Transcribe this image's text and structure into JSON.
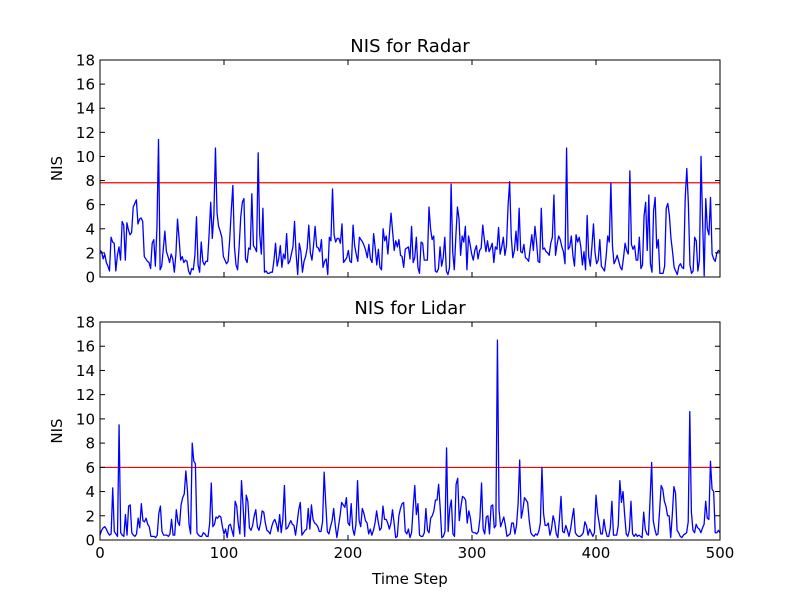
{
  "chart_data": [
    {
      "type": "line",
      "title": "NIS for Radar",
      "xlabel": "",
      "ylabel": "NIS",
      "xlim": [
        0,
        500
      ],
      "ylim": [
        0,
        18
      ],
      "x_ticks": [
        "0",
        "100",
        "200",
        "300",
        "400",
        "500"
      ],
      "y_ticks": [
        "0",
        "2",
        "4",
        "6",
        "8",
        "10",
        "12",
        "14",
        "16",
        "18"
      ],
      "threshold": 7.815,
      "series": [
        {
          "color": "#0000ff",
          "values": [
            2.2,
            2.1,
            1.5,
            1.9,
            1.2,
            0.9,
            0.5,
            3.3,
            2.9,
            2.8,
            0.5,
            1.8,
            2.5,
            1.4,
            4.6,
            4.3,
            1.4,
            4.5,
            3.9,
            3.5,
            3.7,
            5.8,
            6.1,
            6.4,
            4.4,
            4.8,
            4.9,
            4.6,
            1.7,
            1.5,
            1.3,
            1.2,
            0.7,
            2.8,
            3.1,
            0.9,
            4.1,
            11.4,
            0.6,
            0.9,
            2.3,
            3.8,
            2.1,
            1.7,
            1.2,
            1.9,
            1.5,
            0.4,
            1.9,
            4.8,
            3.2,
            1.4,
            1.7,
            1.2,
            1.4,
            1.3,
            0.5,
            0.2,
            0.7,
            0.6,
            1.8,
            5.0,
            1.0,
            0.4,
            2.9,
            1.3,
            1.0,
            1.3,
            1.3,
            3.6,
            6.2,
            3.2,
            5.2,
            10.7,
            5.3,
            4.2,
            3.8,
            3.3,
            1.7,
            1.4,
            1.1,
            1.3,
            3.1,
            5.5,
            7.6,
            2.5,
            1.0,
            0.6,
            2.6,
            5.0,
            6.2,
            6.5,
            1.5,
            1.2,
            2.4,
            2.3,
            6.9,
            2.6,
            2.4,
            2.1,
            10.3,
            3.5,
            1.9,
            5.7,
            0.4,
            0.5,
            0.3,
            0.3,
            0.4,
            0.4,
            1.4,
            2.8,
            0.9,
            1.5,
            2.6,
            0.8,
            1.9,
            1.5,
            3.6,
            1.1,
            1.3,
            1.9,
            2.5,
            4.6,
            1.9,
            0.2,
            2.8,
            2.1,
            0.4,
            1.3,
            1.7,
            2.4,
            4.3,
            2.0,
            1.4,
            2.6,
            4.2,
            2.5,
            2.4,
            2.1,
            3.1,
            0.8,
            1.3,
            1.5,
            0.2,
            3.3,
            3.0,
            7.3,
            3.5,
            2.9,
            3.2,
            3.2,
            2.8,
            4.4,
            1.2,
            1.4,
            1.6,
            2.2,
            1.3,
            1.2,
            4.3,
            2.6,
            1.9,
            1.3,
            3.3,
            3.1,
            2.9,
            2.6,
            2.2,
            1.6,
            2.7,
            1.5,
            1.2,
            3.6,
            2.4,
            1.0,
            2.3,
            0.8,
            0.6,
            4.0,
            3.0,
            3.4,
            1.9,
            3.6,
            5.3,
            3.8,
            2.2,
            3.0,
            2.5,
            3.1,
            1.8,
            1.7,
            0.8,
            2.3,
            2.4,
            2.5,
            1.5,
            4.2,
            1.2,
            1.6,
            3.3,
            0.8,
            0.3,
            2.9,
            2.8,
            1.4,
            1.4,
            1.4,
            5.8,
            4.0,
            3.1,
            3.4,
            0.5,
            0.4,
            0.7,
            2.5,
            0.9,
            1.6,
            3.3,
            0.5,
            0.2,
            0.8,
            7.7,
            2.1,
            0.6,
            3.4,
            5.8,
            4.8,
            1.8,
            3.4,
            2.9,
            4.2,
            0.6,
            3.4,
            2.7,
            1.9,
            1.4,
            2.2,
            2.6,
            1.5,
            2.2,
            2.4,
            4.3,
            3.1,
            2.1,
            3.0,
            2.1,
            2.4,
            2.8,
            1.2,
            2.5,
            2.3,
            4.1,
            1.9,
            2.5,
            3.3,
            1.8,
            2.6,
            5.9,
            7.9,
            3.4,
            1.6,
            2.2,
            3.8,
            2.2,
            5.7,
            2.1,
            2.0,
            2.7,
            1.6,
            1.5,
            1.3,
            2.4,
            3.5,
            2.2,
            4.2,
            2.9,
            1.3,
            1.2,
            5.7,
            2.3,
            2.4,
            2.1,
            2.0,
            1.8,
            2.8,
            3.3,
            6.8,
            1.8,
            2.7,
            3.4,
            3.1,
            2.5,
            2.1,
            1.1,
            10.7,
            2.3,
            2.5,
            3.4,
            1.8,
            0.9,
            3.5,
            2.9,
            3.3,
            2.5,
            1.0,
            2.1,
            0.6,
            5.1,
            1.7,
            0.9,
            2.5,
            4.4,
            2.0,
            1.1,
            1.4,
            3.1,
            0.9,
            0.7,
            0.5,
            1.7,
            3.4,
            2.9,
            7.8,
            2.6,
            1.1,
            1.4,
            1.8,
            1.3,
            0.8,
            0.6,
            1.6,
            2.8,
            2.2,
            1.9,
            8.8,
            2.7,
            2.3,
            2.6,
            1.4,
            1.4,
            3.3,
            0.7,
            1.0,
            5.1,
            6.2,
            2.2,
            6.8,
            1.1,
            0.4,
            5.5,
            6.6,
            2.4,
            3.1,
            0.3,
            0.3,
            0.3,
            0.9,
            5.7,
            6.1,
            5.1,
            3.2,
            2.1,
            0.8,
            0.5,
            0.2,
            0.9,
            1.1,
            0.8,
            0.7,
            6.5,
            9.0,
            6.1,
            1.0,
            0.3,
            0.5,
            3.3,
            3.0,
            0.5,
            1.4,
            10.0,
            4.6,
            0.1,
            6.5,
            4.0,
            3.5,
            6.6,
            1.9,
            1.5,
            1.3,
            2.0,
            2.2,
            2.1
          ]
        }
      ]
    },
    {
      "type": "line",
      "title": "NIS for Lidar",
      "xlabel": "Time Step",
      "ylabel": "NIS",
      "xlim": [
        0,
        500
      ],
      "ylim": [
        0,
        18
      ],
      "x_ticks": [
        "0",
        "100",
        "200",
        "300",
        "400",
        "500"
      ],
      "y_ticks": [
        "0",
        "2",
        "4",
        "6",
        "8",
        "10",
        "12",
        "14",
        "16",
        "18"
      ],
      "threshold": 5.991,
      "series": [
        {
          "color": "#0000ff",
          "values": [
            0.4,
            0.8,
            1.0,
            1.1,
            0.9,
            0.6,
            0.4,
            0.5,
            4.3,
            0.7,
            0.5,
            0.3,
            9.5,
            0.6,
            0.4,
            0.3,
            2.1,
            0.4,
            2.8,
            2.9,
            0.6,
            0.4,
            0.3,
            0.5,
            1.8,
            1.0,
            3.0,
            1.6,
            1.5,
            1.8,
            1.3,
            1.1,
            0.3,
            0.3,
            0.3,
            0.2,
            0.4,
            2.2,
            2.8,
            0.7,
            0.4,
            0.4,
            0.4,
            0.3,
            0.5,
            1.7,
            0.4,
            0.4,
            2.5,
            1.5,
            1.2,
            2.9,
            3.5,
            3.8,
            5.7,
            4.1,
            1.3,
            0.5,
            8.0,
            6.5,
            6.3,
            0.6,
            0.4,
            0.3,
            0.3,
            0.6,
            0.5,
            0.3,
            0.3,
            1.4,
            4.7,
            1.1,
            1.3,
            1.9,
            1.8,
            2.0,
            1.9,
            1.1,
            0.5,
            0.9,
            0.2,
            1.2,
            1.3,
            0.8,
            0.3,
            3.2,
            2.8,
            1.3,
            0.5,
            4.9,
            2.8,
            0.3,
            3.7,
            3.2,
            1.0,
            0.8,
            1.2,
            2.0,
            2.5,
            1.1,
            0.8,
            1.4,
            2.4,
            2.3,
            1.4,
            0.8,
            0.7,
            0.5,
            1.1,
            1.5,
            1.7,
            1.3,
            0.7,
            2.1,
            0.6,
            1.7,
            4.5,
            0.9,
            1.0,
            1.3,
            1.6,
            1.3,
            1.2,
            0.4,
            1.4,
            2.5,
            3.1,
            0.4,
            0.6,
            0.8,
            0.9,
            2.6,
            0.9,
            2.9,
            1.7,
            1.4,
            1.3,
            1.1,
            0.7,
            0.7,
            1.5,
            5.6,
            3.0,
            0.7,
            0.5,
            1.1,
            1.6,
            2.6,
            1.2,
            0.2,
            1.1,
            2.0,
            3.1,
            2.9,
            2.7,
            3.5,
            1.4,
            1.2,
            3.0,
            0.9,
            0.4,
            1.3,
            4.9,
            1.6,
            1.1,
            2.6,
            2.2,
            1.6,
            1.4,
            0.5,
            0.9,
            0.4,
            0.8,
            1.4,
            2.4,
            1.5,
            0.8,
            1.0,
            2.8,
            1.7,
            1.7,
            1.4,
            0.9,
            1.4,
            2.5,
            1.4,
            0.2,
            0.3,
            2.0,
            2.6,
            3.0,
            3.1,
            0.7,
            0.5,
            0.9,
            0.2,
            0.6,
            2.7,
            4.5,
            2.1,
            3.0,
            0.4,
            0.3,
            0.3,
            0.6,
            2.6,
            0.8,
            0.6,
            1.8,
            2.0,
            2.4,
            3.3,
            3.3,
            4.6,
            2.6,
            0.2,
            0.3,
            0.7,
            7.6,
            0.7,
            2.6,
            3.3,
            0.5,
            0.3,
            4.6,
            5.1,
            1.6,
            2.7,
            3.6,
            3.5,
            3.3,
            1.4,
            2.4,
            1.8,
            0.7,
            0.6,
            0.6,
            0.5,
            0.7,
            1.8,
            4.7,
            0.9,
            0.5,
            1.9,
            2.0,
            0.5,
            2.8,
            2.9,
            1.0,
            1.2,
            16.5,
            2.5,
            1.1,
            1.5,
            1.9,
            1.2,
            0.3,
            0.4,
            0.5,
            1.4,
            1.4,
            0.5,
            1.2,
            3.0,
            6.6,
            1.8,
            2.5,
            3.5,
            3.3,
            3.1,
            1.6,
            0.6,
            0.4,
            0.3,
            0.5,
            0.4,
            0.7,
            1.4,
            6.0,
            2.2,
            1.2,
            1.2,
            1.4,
            0.4,
            0.9,
            2.0,
            1.5,
            0.5,
            0.2,
            1.7,
            3.6,
            0.7,
            0.6,
            1.2,
            0.8,
            0.3,
            0.9,
            1.8,
            2.6,
            0.6,
            0.4,
            0.3,
            0.3,
            0.4,
            0.6,
            1.5,
            1.2,
            0.4,
            0.9,
            0.6,
            0.3,
            0.6,
            3.7,
            2.2,
            1.4,
            0.5,
            0.5,
            1.7,
            0.8,
            0.3,
            0.3,
            1.0,
            3.2,
            0.4,
            0.4,
            0.4,
            1.2,
            4.9,
            3.1,
            4.0,
            2.1,
            0.5,
            0.3,
            0.8,
            3.2,
            0.5,
            0.3,
            0.5,
            0.3,
            0.4,
            0.3,
            0.2,
            2.3,
            0.9,
            0.5,
            0.4,
            3.3,
            6.4,
            1.6,
            0.9,
            0.4,
            0.5,
            2.4,
            4.5,
            4.2,
            3.2,
            2.8,
            2.0,
            2.0,
            0.2,
            2.1,
            4.4,
            3.9,
            0.8,
            0.6,
            0.3,
            0.2,
            0.4,
            0.5,
            0.6,
            1.5,
            10.6,
            2.3,
            0.8,
            0.6,
            1.3,
            1.0,
            0.9,
            0.6,
            1.0,
            1.3,
            3.2,
            1.8,
            1.7,
            6.5,
            4.2,
            4.0,
            0.6,
            0.6,
            0.8,
            0.6
          ]
        }
      ]
    }
  ]
}
